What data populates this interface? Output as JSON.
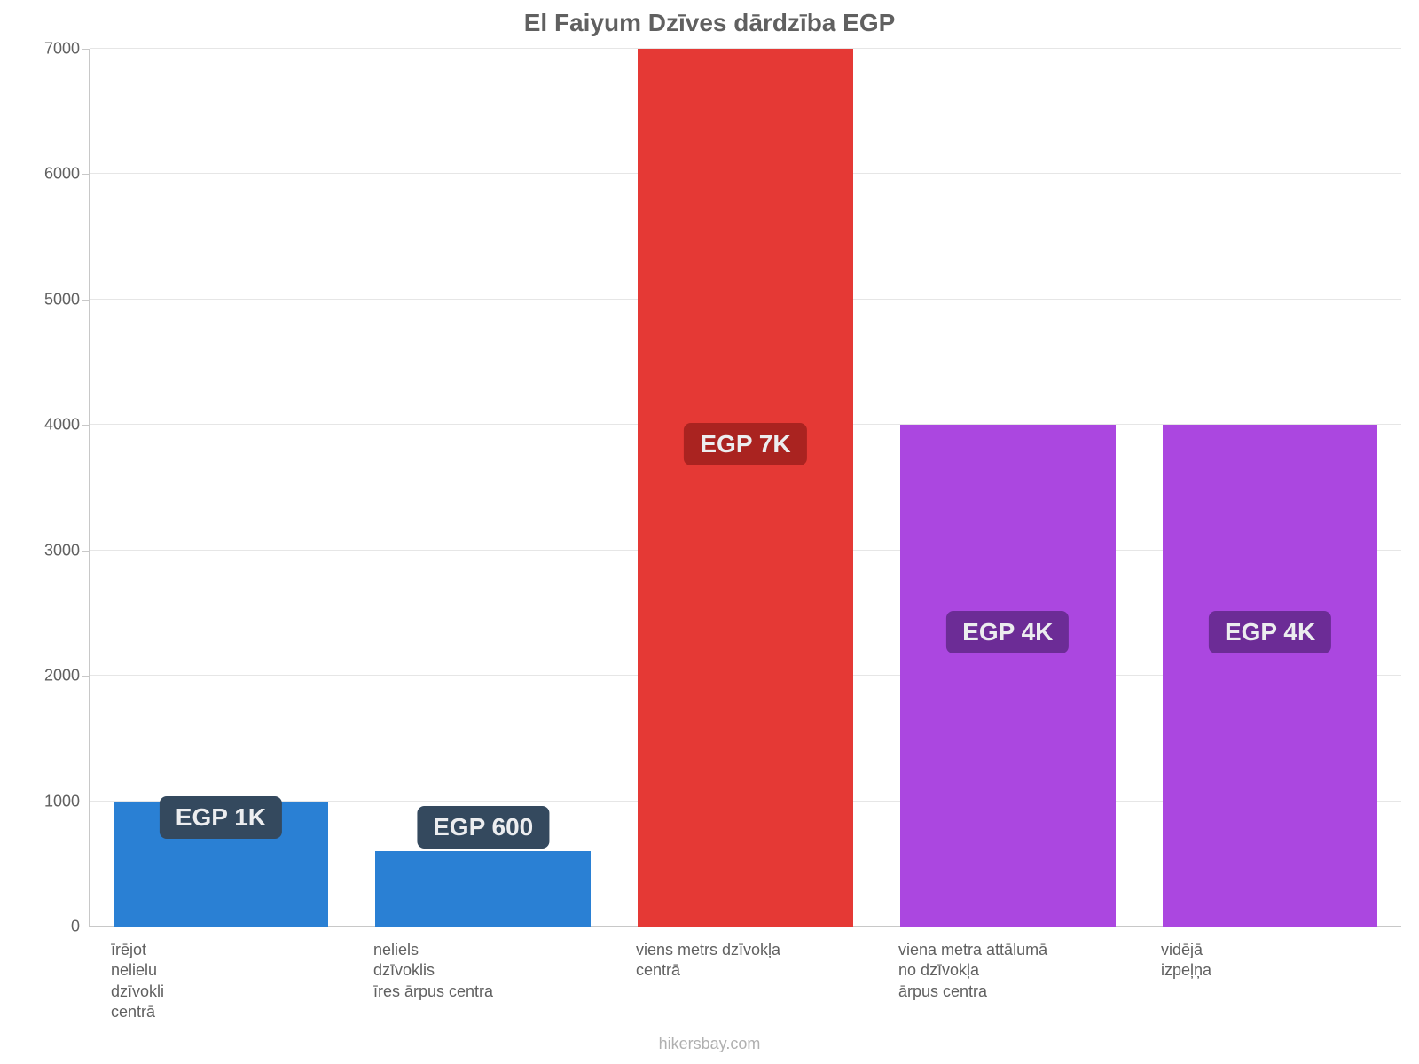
{
  "chart": {
    "type": "bar",
    "title": "El Faiyum Dzīves dārdzība EGP",
    "title_fontsize": 28,
    "title_color": "#606060",
    "background_color": "#ffffff",
    "grid_color": "#e6e6e6",
    "axis_color": "#c8c8c8",
    "ylim": [
      0,
      7000
    ],
    "ytick_step": 1000,
    "ytick_labels": [
      "0",
      "1000",
      "2000",
      "3000",
      "4000",
      "5000",
      "6000",
      "7000"
    ],
    "ytick_fontsize": 18,
    "xtick_fontsize": 18,
    "bar_width": 0.82,
    "categories": [
      "īrējot\nnelielu\ndzīvokli\ncentrā",
      "neliels\ndzīvoklis\nīres ārpus centra",
      "viens metrs dzīvokļa\ncentrā",
      "viena metra attālumā\nno dzīvokļa\nārpus centra",
      "vidējā\nizpeļņa"
    ],
    "values": [
      1000,
      600,
      7000,
      4000,
      4000
    ],
    "value_labels": [
      "EGP 1K",
      "EGP 600",
      "EGP 7K",
      "EGP 4K",
      "EGP 4K"
    ],
    "value_label_fontsize": 28,
    "bar_colors": [
      "#2a80d4",
      "#2a80d4",
      "#e53935",
      "#ab47e0",
      "#ab47e0"
    ],
    "badge_colors": [
      "#34495e",
      "#34495e",
      "#aa2320",
      "#6c2c96",
      "#6c2c96"
    ],
    "badge_text_color": "#ecedef",
    "badge_positions_y": [
      870,
      790,
      3850,
      2350,
      2350
    ],
    "attribution": "hikersbay.com",
    "attribution_color": "#b0b0b0",
    "attribution_fontsize": 18
  }
}
